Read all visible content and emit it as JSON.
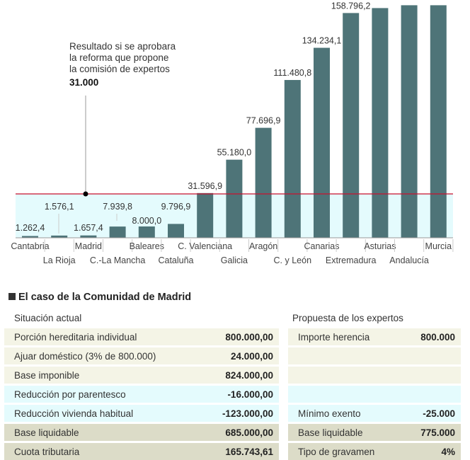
{
  "chart_data": {
    "type": "bar",
    "categories": [
      "Cantabria",
      "La Rioja",
      "Madrid",
      "C.-La Mancha",
      "Baleares",
      "Cataluña",
      "C. Valenciana",
      "Galicia",
      "Aragón",
      "C. y León",
      "Canarias",
      "Extremadura",
      "Asturias",
      "Andalucía",
      "Murcia"
    ],
    "values": [
      1262.4,
      1576.1,
      1657.4,
      7939.8,
      8000.0,
      9796.9,
      31596.9,
      55180.0,
      77696.9,
      111480.8,
      134234.1,
      158796.2,
      162300,
      164300,
      164300
    ],
    "value_labels": [
      "1.262,4",
      "1.576,1",
      "1.657,4",
      "7.939,8",
      "8.000,0",
      "9.796,9",
      "31.596,9",
      "55.180,0",
      "77.696,9",
      "111.480,8",
      "134.234,1",
      "158.796,2",
      "",
      "",
      ""
    ],
    "reference_line": {
      "value": 31000,
      "label": "31.000",
      "text": [
        "Resultado si se aprobara",
        "la reforma que propone",
        "la comisión de expertos"
      ]
    },
    "colors": {
      "bar": "#4e7478",
      "reference_line": "#c8102e",
      "band": "#e4fbfd"
    }
  },
  "table": {
    "title": "El caso de la Comunidad de Madrid",
    "left_header": "Situación actual",
    "right_header": "Propuesta de los expertos",
    "left_rows": [
      {
        "label": "Porción hereditaria individual",
        "value": "800.000,00",
        "tone": "beige"
      },
      {
        "label": "Ajuar doméstico (3% de 800.000)",
        "value": "24.000,00",
        "tone": "beige"
      },
      {
        "label": "Base imponible",
        "value": "824.000,00",
        "tone": "beige"
      },
      {
        "label": "Reducción por parentesco",
        "value": "-16.000,00",
        "tone": "cyan"
      },
      {
        "label": "Reducción vivienda habitual",
        "value": "-123.000,00",
        "tone": "cyan"
      },
      {
        "label": "Base liquidable",
        "value": "685.000,00",
        "tone": "olive"
      },
      {
        "label": "Cuota tributaria",
        "value": "165.743,61",
        "tone": "olive"
      }
    ],
    "right_rows": [
      {
        "label": "Importe herencia",
        "value": "800.000",
        "tone": "beige"
      },
      {
        "label": "",
        "value": "",
        "tone": "beige"
      },
      {
        "label": "",
        "value": "",
        "tone": "beige"
      },
      {
        "label": "",
        "value": "",
        "tone": "cyan"
      },
      {
        "label": "Mínimo exento",
        "value": "-25.000",
        "tone": "cyan"
      },
      {
        "label": "Base liquidable",
        "value": "775.000",
        "tone": "olive"
      },
      {
        "label": "Tipo de gravamen",
        "value": "4%",
        "tone": "olive"
      }
    ]
  }
}
